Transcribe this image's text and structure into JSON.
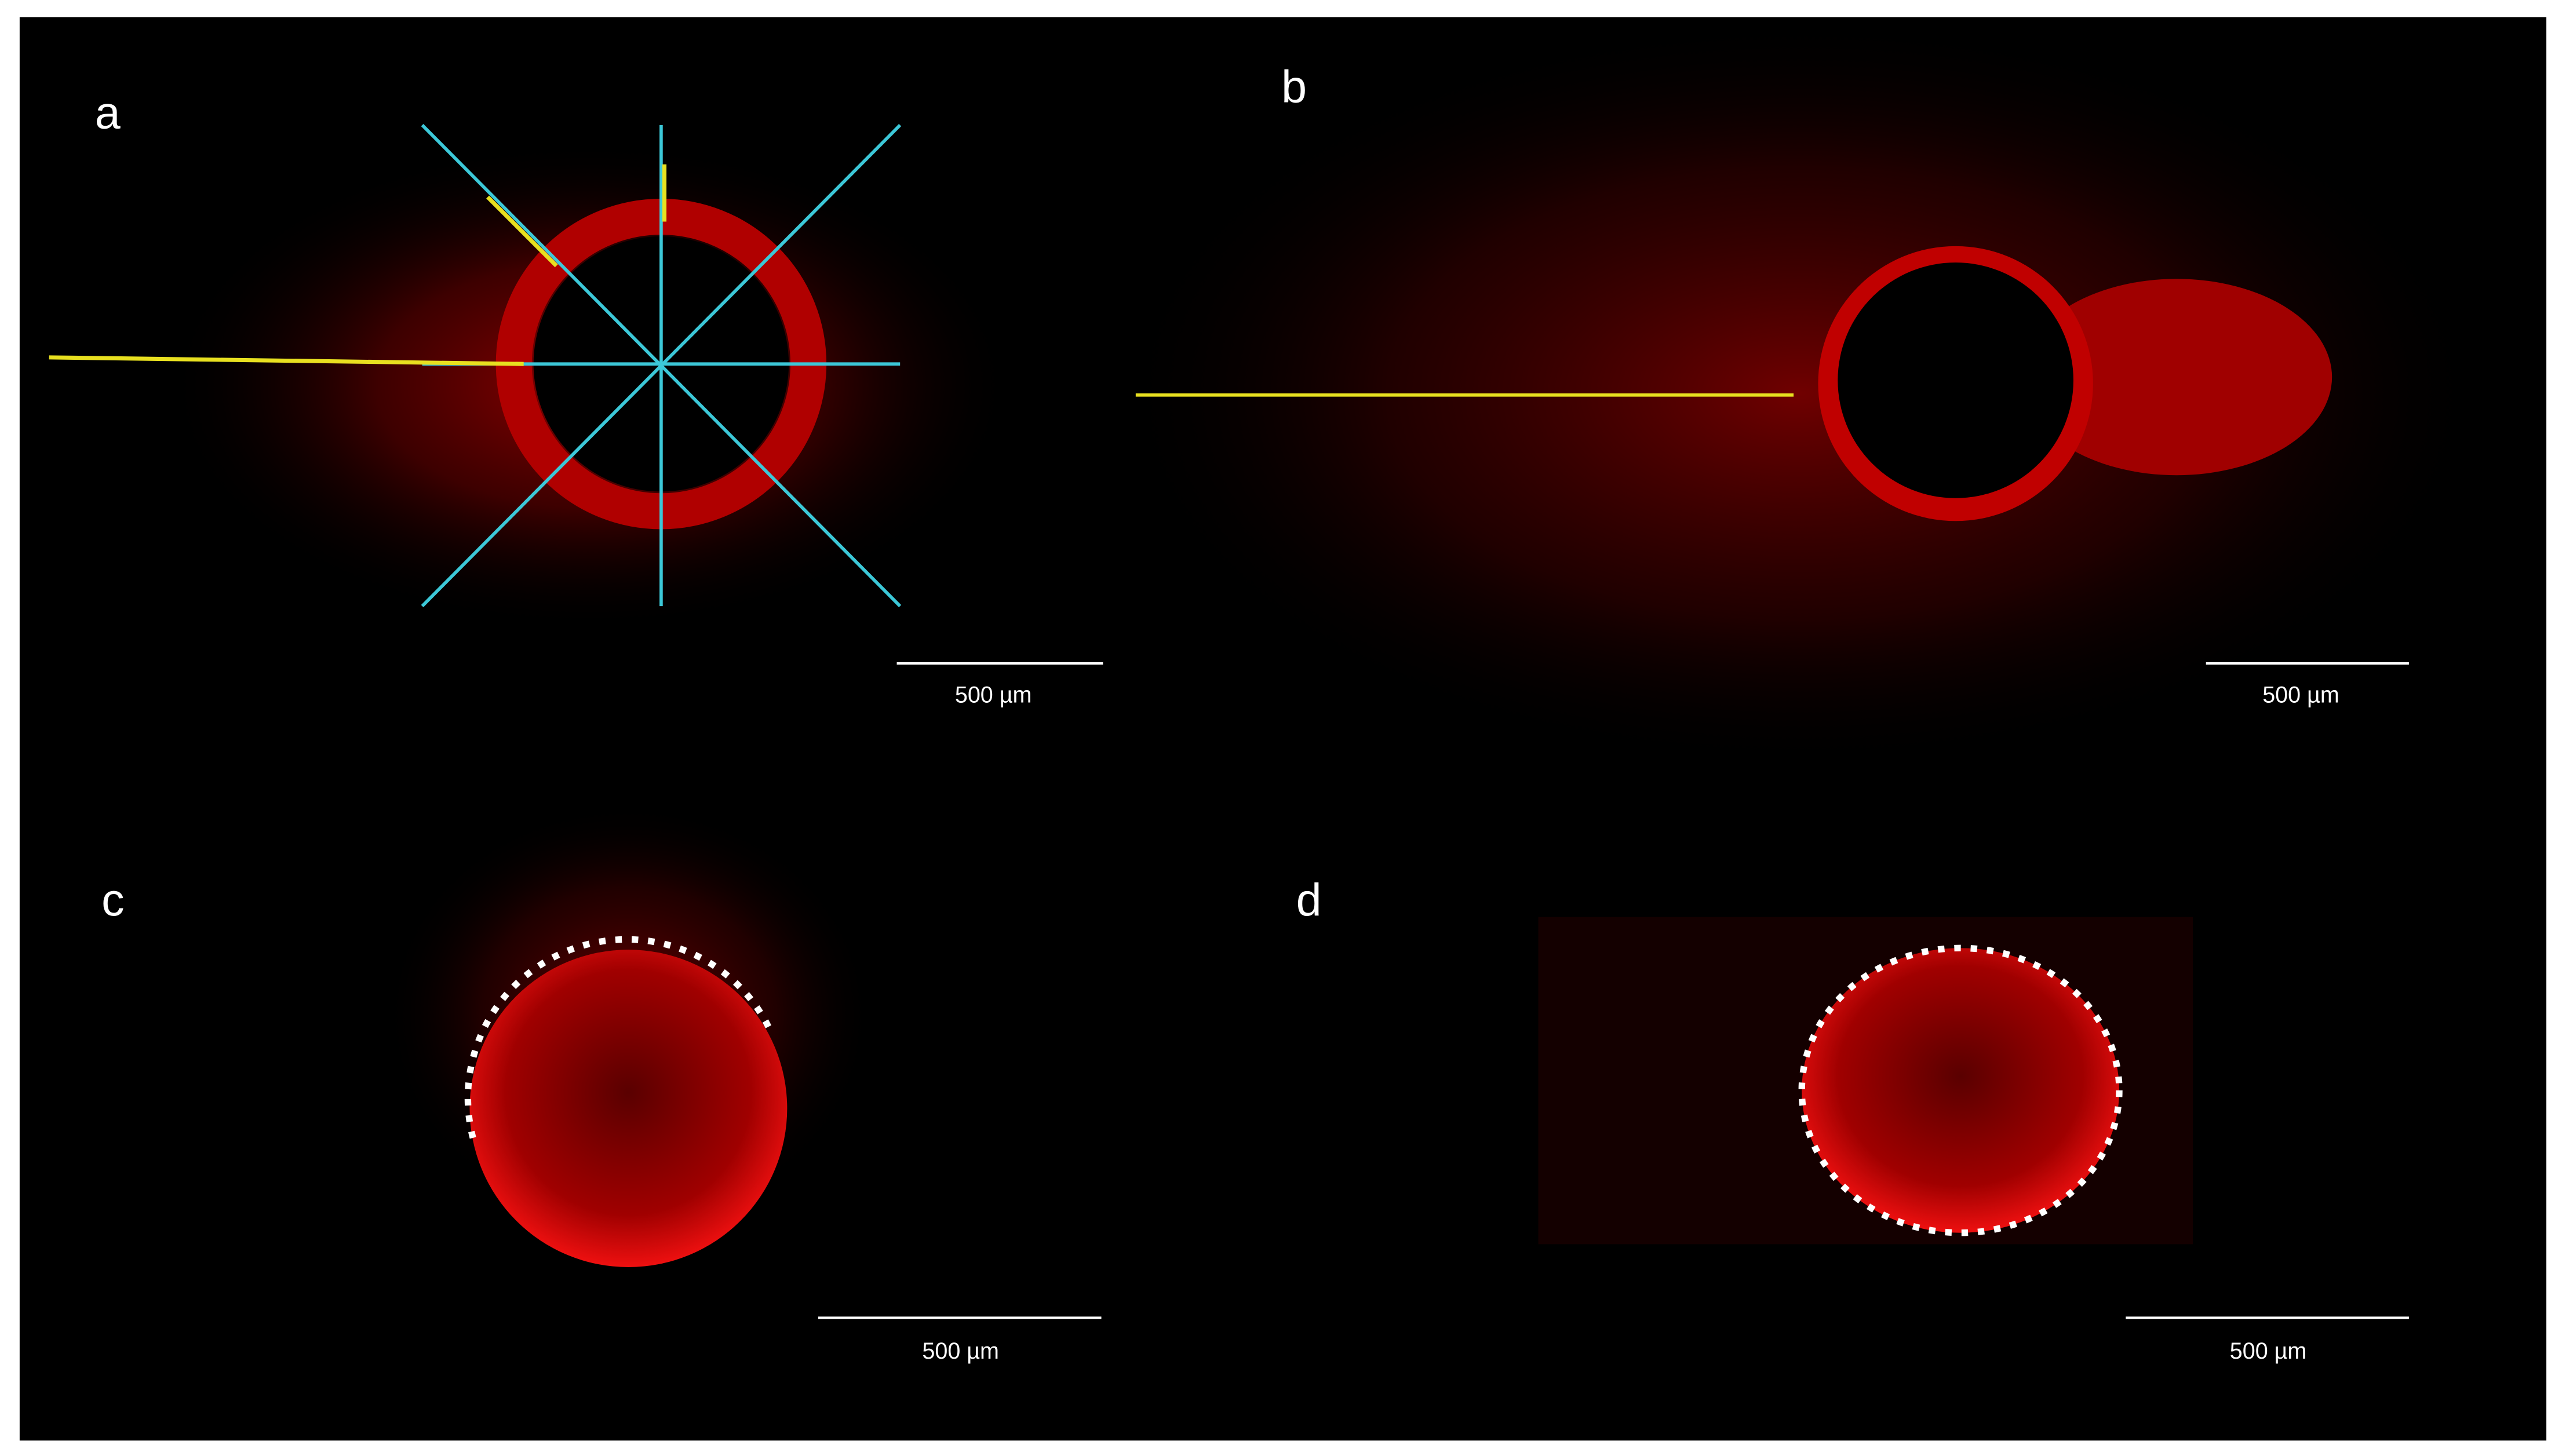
{
  "panels": [
    {
      "label": "a",
      "scale_bar": "500 µm"
    },
    {
      "label": "b",
      "scale_bar": "500 µm"
    },
    {
      "label": "c",
      "scale_bar": "500 µm"
    },
    {
      "label": "d",
      "scale_bar": "500 µm"
    }
  ]
}
